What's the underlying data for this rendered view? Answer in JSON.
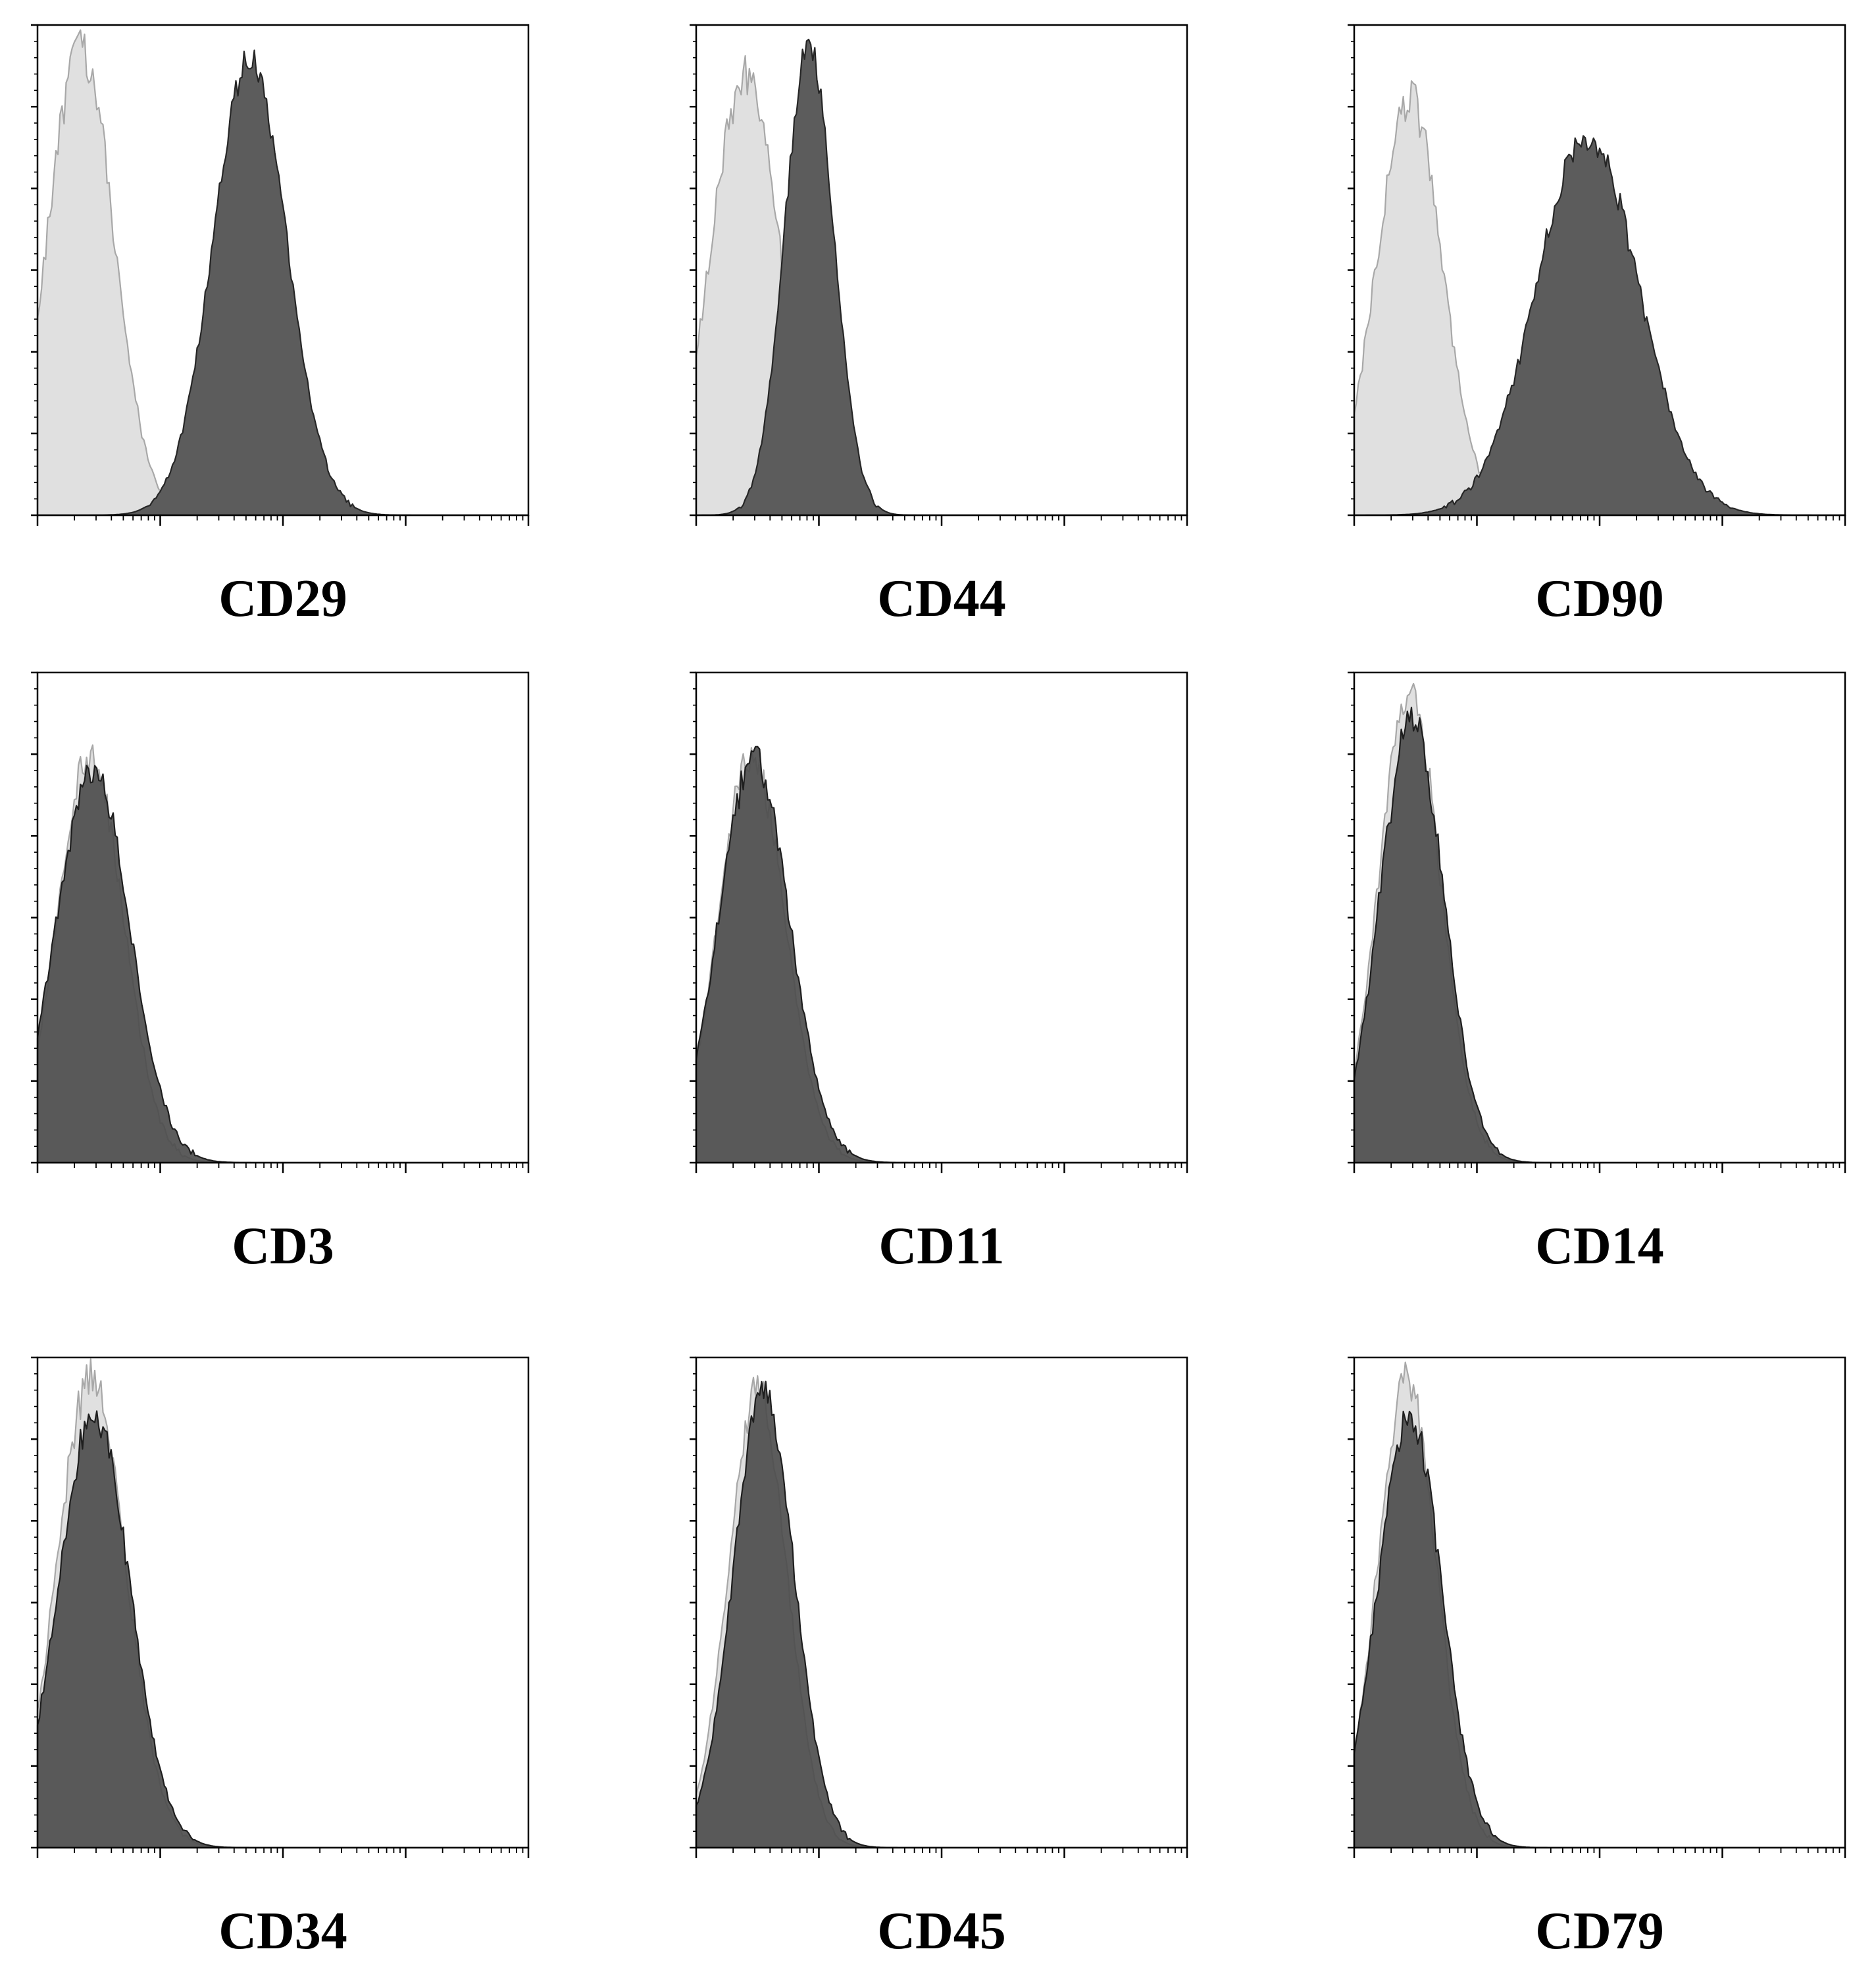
{
  "figure": {
    "colors": {
      "isotype_fill": "#e0e0e0",
      "isotype_stroke": "#a8a8a8",
      "positive_fill": "#5c5c5c",
      "positive_stroke": "#262626",
      "negative_fill": "#4a4a4a",
      "negative_stroke": "#1e1e1e",
      "axis": "#000000"
    }
  },
  "chart_data": [
    {
      "type": "area",
      "label": "CD29",
      "x_scale": "log",
      "x_decades": 4,
      "series": [
        {
          "role": "isotype",
          "peak_position": 0.35,
          "width": 0.27,
          "height": 0.95,
          "noise": 0.05
        },
        {
          "role": "marker",
          "peak_position": 1.73,
          "width": 0.3,
          "height": 0.93,
          "noise": 0.03
        }
      ]
    },
    {
      "type": "area",
      "label": "CD44",
      "x_scale": "log",
      "x_decades": 4,
      "series": [
        {
          "role": "isotype",
          "peak_position": 0.4,
          "width": 0.28,
          "height": 0.9,
          "noise": 0.05
        },
        {
          "role": "marker",
          "peak_position": 0.92,
          "width": 0.2,
          "height": 0.96,
          "noise": 0.03
        }
      ]
    },
    {
      "type": "area",
      "label": "CD90",
      "x_scale": "log",
      "x_decades": 4,
      "series": [
        {
          "role": "isotype",
          "peak_position": 0.45,
          "width": 0.27,
          "height": 0.85,
          "noise": 0.05
        },
        {
          "role": "marker",
          "peak_position": 1.9,
          "width": 0.42,
          "height": 0.77,
          "noise": 0.04
        }
      ]
    },
    {
      "type": "area",
      "label": "CD3",
      "x_scale": "log",
      "x_decades": 4,
      "series": [
        {
          "role": "isotype",
          "peak_position": 0.43,
          "width": 0.27,
          "height": 0.83,
          "noise": 0.04
        },
        {
          "role": "marker",
          "peak_position": 0.45,
          "width": 0.3,
          "height": 0.8,
          "noise": 0.04
        }
      ]
    },
    {
      "type": "area",
      "label": "CD11",
      "x_scale": "log",
      "x_decades": 4,
      "series": [
        {
          "role": "isotype",
          "peak_position": 0.45,
          "width": 0.27,
          "height": 0.83,
          "noise": 0.04
        },
        {
          "role": "marker",
          "peak_position": 0.47,
          "width": 0.29,
          "height": 0.82,
          "noise": 0.04
        }
      ]
    },
    {
      "type": "area",
      "label": "CD14",
      "x_scale": "log",
      "x_decades": 4,
      "series": [
        {
          "role": "isotype",
          "peak_position": 0.45,
          "width": 0.25,
          "height": 0.96,
          "noise": 0.04
        },
        {
          "role": "marker",
          "peak_position": 0.47,
          "width": 0.26,
          "height": 0.9,
          "noise": 0.04
        }
      ]
    },
    {
      "type": "area",
      "label": "CD34",
      "x_scale": "log",
      "x_decades": 4,
      "series": [
        {
          "role": "isotype",
          "peak_position": 0.44,
          "width": 0.28,
          "height": 0.96,
          "noise": 0.04
        },
        {
          "role": "marker",
          "peak_position": 0.46,
          "width": 0.29,
          "height": 0.89,
          "noise": 0.04
        }
      ]
    },
    {
      "type": "area",
      "label": "CD45",
      "x_scale": "log",
      "x_decades": 4,
      "series": [
        {
          "role": "isotype",
          "peak_position": 0.5,
          "width": 0.24,
          "height": 0.93,
          "noise": 0.04
        },
        {
          "role": "marker",
          "peak_position": 0.55,
          "width": 0.25,
          "height": 0.93,
          "noise": 0.03
        }
      ]
    },
    {
      "type": "area",
      "label": "CD79",
      "x_scale": "log",
      "x_decades": 4,
      "series": [
        {
          "role": "isotype",
          "peak_position": 0.43,
          "width": 0.24,
          "height": 0.95,
          "noise": 0.04
        },
        {
          "role": "marker",
          "peak_position": 0.45,
          "width": 0.26,
          "height": 0.88,
          "noise": 0.04
        }
      ]
    }
  ]
}
